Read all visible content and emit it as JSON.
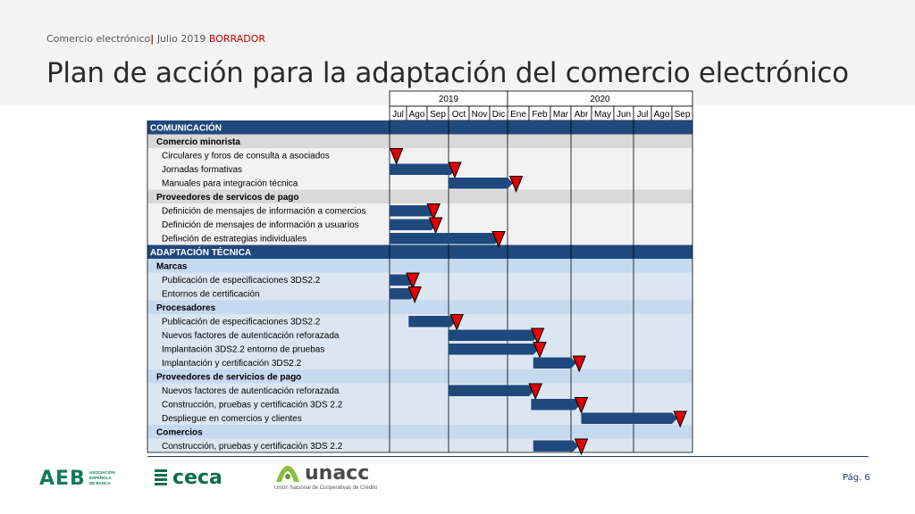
{
  "header": {
    "breadcrumb": "Comercio electrónico",
    "separator": "|",
    "date": "Julio 2019",
    "status": "BORRADOR",
    "title": "Plan de acción para la adaptación del comercio electrónico"
  },
  "footer": {
    "logos": {
      "aeb": {
        "mark": "AEB",
        "sub": [
          "ASOCIACIÓN",
          "ESPAÑOLA",
          "DE BANCA"
        ]
      },
      "ceca": "ceca",
      "unacc": {
        "word": "unacc",
        "sub": "Unión Nacional de Cooperativas de Crédito"
      }
    },
    "page": "Pág. 6"
  },
  "colors": {
    "navy": "#1f3864",
    "section_bg": "#1f497d",
    "sub_gray": "#d9d9d9",
    "row_gray": "#f2f2f2",
    "sub_blue": "#c5d9f1",
    "row_blue": "#dce6f1",
    "bar": "#1f497d",
    "milestone": "#e00000"
  },
  "chart_data": {
    "type": "gantt",
    "years": [
      {
        "label": "2019",
        "span": 6
      },
      {
        "label": "2020",
        "span": 9
      }
    ],
    "months": [
      "Jul",
      "Ago",
      "Sep",
      "Oct",
      "Nov",
      "Dic",
      "Ene",
      "Feb",
      "Mar",
      "Abr",
      "May",
      "Jun",
      "Jul",
      "Ago",
      "Sep"
    ],
    "rows": [
      {
        "label": "COMUNICACIÓN",
        "kind": "section"
      },
      {
        "label": "Comercio minorista",
        "kind": "subsection"
      },
      {
        "label": "Circulares y foros de consulta a asociados",
        "kind": "task",
        "milestone": 0.4
      },
      {
        "label": "Jornadas formativas",
        "kind": "task",
        "bar": [
          0,
          3.1
        ],
        "milestone": 3.3
      },
      {
        "label": "Manuales para integración técnica",
        "kind": "task",
        "bar": [
          3.0,
          6.0
        ],
        "milestone": 6.4
      },
      {
        "label": "Proveedores de servicos de pago",
        "kind": "subsection"
      },
      {
        "label": "Definición de mensajes de información a comercios",
        "kind": "task",
        "bar": [
          0,
          2.2
        ],
        "milestone": 2.3
      },
      {
        "label": "Definición de mensajes de información a usuarios",
        "kind": "task",
        "bar": [
          0,
          2.2
        ],
        "milestone": 2.4
      },
      {
        "label": "Defінción de estrategias individuales",
        "kind": "task",
        "bar": [
          0,
          5.3
        ],
        "milestone": 5.5
      },
      {
        "label": "ADAPTACIÓN TÉCNICA",
        "kind": "section"
      },
      {
        "label": "Marcas",
        "kind": "subsection"
      },
      {
        "label": "Publicación de especificaciones 3DS2.2",
        "kind": "task",
        "bar": [
          0,
          1.2
        ],
        "milestone": 1.3
      },
      {
        "label": "Entornos de certificación",
        "kind": "task",
        "bar": [
          0,
          1.2
        ],
        "milestone": 1.4
      },
      {
        "label": "Procesadores",
        "kind": "subsection"
      },
      {
        "label": "Publicación de especificaciones 3DS2.2",
        "kind": "task",
        "bar": [
          1.1,
          3.1
        ],
        "milestone": 3.4
      },
      {
        "label": "Nuevos factores de autenticación reforazada",
        "kind": "task",
        "bar": [
          3.0,
          7.2
        ],
        "milestone": 7.4
      },
      {
        "label": "Implantación 3DS2.2 entorno de pruebas",
        "kind": "task",
        "bar": [
          3.0,
          7.2
        ],
        "milestone": 7.5
      },
      {
        "label": "Implantación  y certificación 3DS2.2",
        "kind": "task",
        "bar": [
          7.2,
          9.0
        ],
        "milestone": 9.4
      },
      {
        "label": "Proveedores de servicios de pago",
        "kind": "subsection"
      },
      {
        "label": "Nuevos factores de autenticación reforazada",
        "kind": "task",
        "bar": [
          3.0,
          7.0
        ],
        "milestone": 7.3
      },
      {
        "label": "Construcción, pruebas y certificación 3DS 2.2",
        "kind": "task",
        "bar": [
          7.1,
          9.2
        ],
        "milestone": 9.5
      },
      {
        "label": "Despliegue en comercios y clientes",
        "kind": "task",
        "bar": [
          9.5,
          14.0
        ],
        "milestone": 14.4
      },
      {
        "label": "Comercios",
        "kind": "subsection"
      },
      {
        "label": "Construcción, pruebas y certificación 3DS 2.2",
        "kind": "task",
        "bar": [
          7.2,
          9.1
        ],
        "milestone": 9.5
      }
    ]
  }
}
